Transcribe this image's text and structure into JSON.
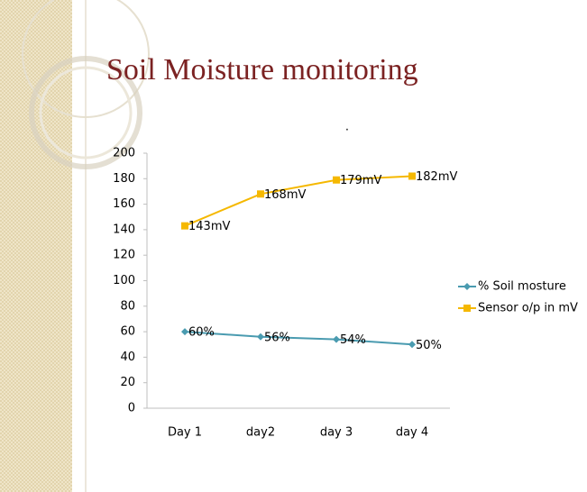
{
  "chart_data": {
    "type": "line",
    "title": "Soil Moisture monitoring",
    "annotation": ".",
    "categories": [
      "Day 1",
      "day2",
      "day 3",
      "day 4"
    ],
    "series": [
      {
        "name": "% Soil mosture",
        "color": "#4a9bb0",
        "marker": "diamond",
        "values": [
          60,
          56,
          54,
          50
        ],
        "value_labels": [
          "60%",
          "56%",
          "54%",
          "50%"
        ]
      },
      {
        "name": "Sensor o/p in mV",
        "color": "#f5b800",
        "marker": "square",
        "values": [
          143,
          168,
          179,
          182
        ],
        "value_labels": [
          "143mV",
          "168mV",
          "179mV",
          "182mV"
        ]
      }
    ],
    "ylim": [
      0,
      200
    ],
    "yticks": [
      0,
      20,
      40,
      60,
      80,
      100,
      120,
      140,
      160,
      180,
      200
    ],
    "grid": false,
    "legend": "right"
  }
}
